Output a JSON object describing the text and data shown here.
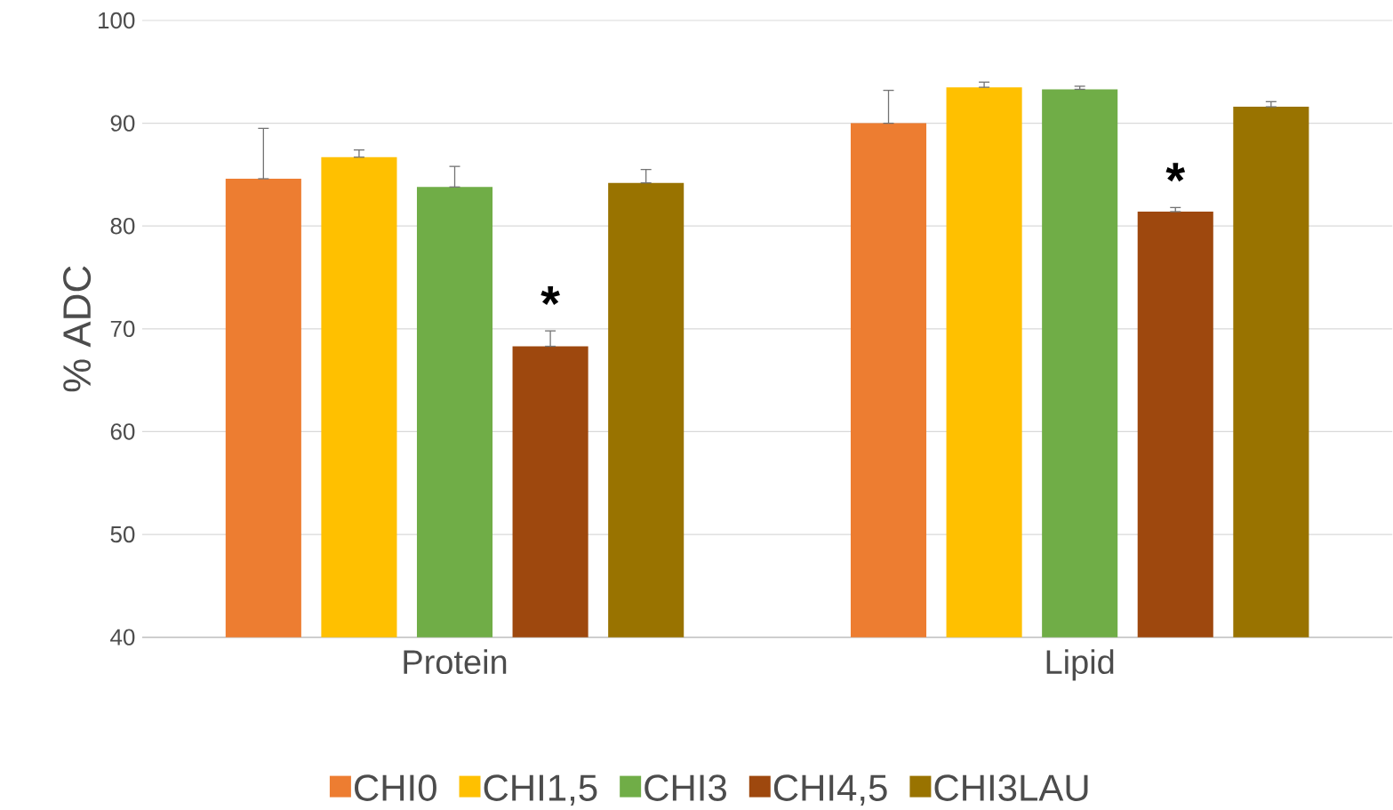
{
  "chart_data": {
    "type": "bar",
    "ylabel": "% ADC",
    "categories": [
      "Protein",
      "Lipid"
    ],
    "series": [
      {
        "name": "CHI0",
        "color": "#ed7d31",
        "values": [
          84.6,
          90.0
        ],
        "errors": [
          [
            84.6,
            89.5
          ],
          [
            90.0,
            93.2
          ]
        ]
      },
      {
        "name": "CHI1,5",
        "color": "#ffc000",
        "values": [
          86.7,
          93.5
        ],
        "errors": [
          [
            86.7,
            87.4
          ],
          [
            93.5,
            94.0
          ]
        ]
      },
      {
        "name": "CHI3",
        "color": "#70ad47",
        "values": [
          83.8,
          93.3
        ],
        "errors": [
          [
            83.8,
            85.8
          ],
          [
            93.3,
            93.6
          ]
        ]
      },
      {
        "name": "CHI4,5",
        "color": "#9e480e",
        "values": [
          68.3,
          81.4
        ],
        "errors": [
          [
            68.3,
            69.8
          ],
          [
            81.4,
            81.8
          ]
        ]
      },
      {
        "name": "CHI3LAU",
        "color": "#997300",
        "values": [
          84.2,
          91.6
        ],
        "errors": [
          [
            84.2,
            85.5
          ],
          [
            91.6,
            92.1
          ]
        ]
      }
    ],
    "ylim": [
      40,
      100
    ],
    "yticks": [
      40,
      50,
      60,
      70,
      80,
      90,
      100
    ],
    "grid": "y",
    "legend": "bottom",
    "annotations": [
      "*",
      "*"
    ]
  }
}
